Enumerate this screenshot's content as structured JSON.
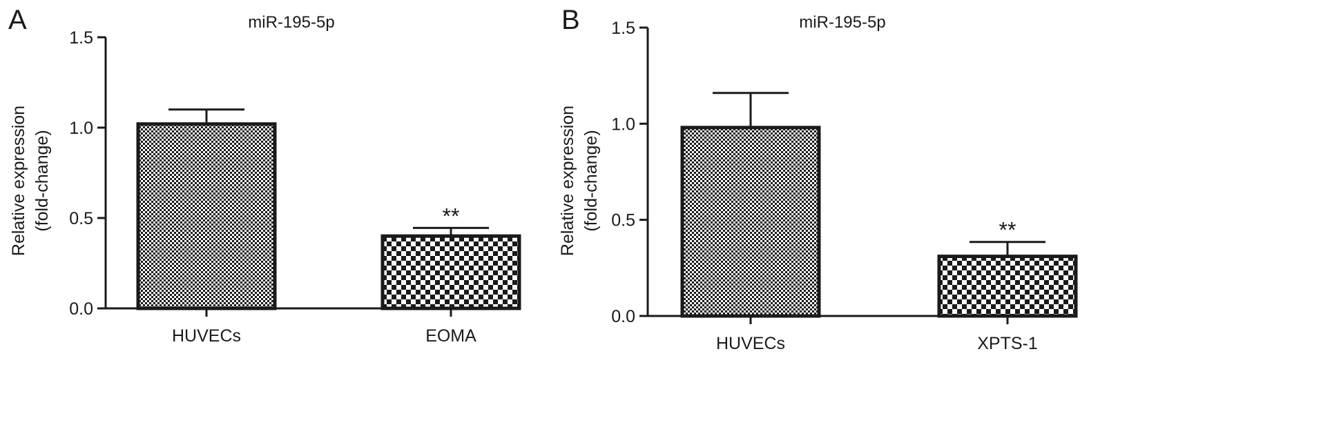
{
  "chart_data": [
    {
      "type": "bar",
      "panel_label": "A",
      "title": "miR-195-5p",
      "ylabel_line1": "Relative expression",
      "ylabel_line2": "(fold-change)",
      "categories": [
        "HUVECs",
        "EOMA"
      ],
      "values": [
        1.02,
        0.4
      ],
      "error": [
        0.08,
        0.045
      ],
      "significance": [
        "",
        "**"
      ],
      "ylim": [
        0,
        1.5
      ],
      "yticks": [
        "0.0",
        "0.5",
        "1.0",
        "1.5"
      ],
      "xlabel": "",
      "grid": false,
      "patterns": [
        "fine-check",
        "coarse-check"
      ]
    },
    {
      "type": "bar",
      "panel_label": "B",
      "title": "miR-195-5p",
      "ylabel_line1": "Relative expression",
      "ylabel_line2": "(fold-change)",
      "categories": [
        "HUVECs",
        "XPTS-1"
      ],
      "values": [
        0.98,
        0.31
      ],
      "error": [
        0.18,
        0.075
      ],
      "significance": [
        "",
        "**"
      ],
      "ylim": [
        0,
        1.5
      ],
      "yticks": [
        "0.0",
        "0.5",
        "1.0",
        "1.5"
      ],
      "xlabel": "",
      "grid": false,
      "patterns": [
        "fine-check",
        "coarse-check"
      ]
    }
  ]
}
